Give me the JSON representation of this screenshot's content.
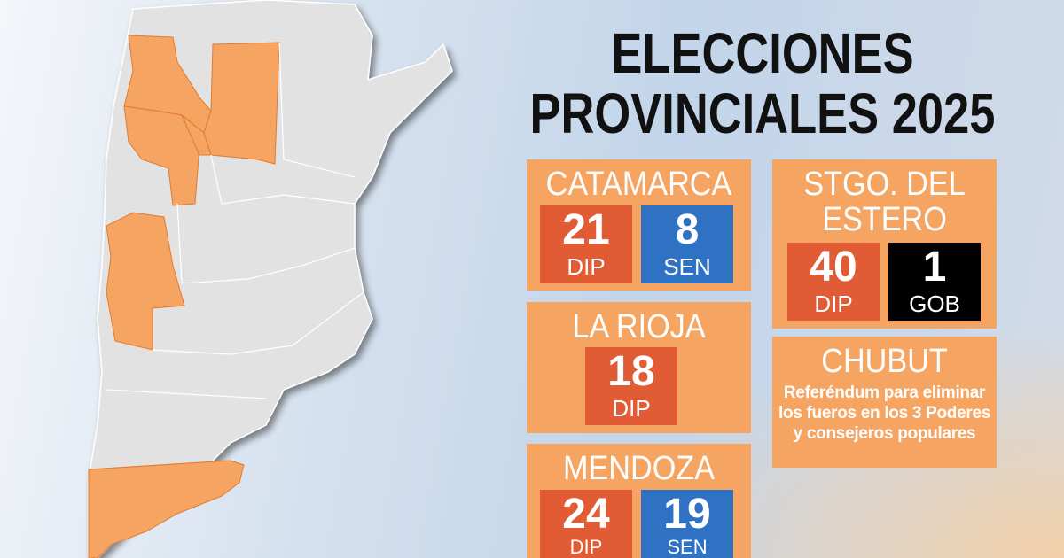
{
  "title": {
    "line1": "ELECCIONES",
    "line2": "PROVINCIALES 2025"
  },
  "colors": {
    "card": "#f5a461",
    "diputados": "#e15b34",
    "senadores": "#2f72c4",
    "gobernador": "#000000",
    "map_land": "#e2e2e2",
    "map_highlight": "#f5a461"
  },
  "provinces": [
    {
      "name": "CATAMARCA",
      "seats": [
        {
          "number": "21",
          "label": "DIP"
        },
        {
          "number": "8",
          "label": "SEN"
        }
      ]
    },
    {
      "name": "LA RIOJA",
      "seats": [
        {
          "number": "18",
          "label": "DIP"
        }
      ]
    },
    {
      "name": "MENDOZA",
      "seats": [
        {
          "number": "24",
          "label": "DIP"
        },
        {
          "number": "19",
          "label": "SEN"
        }
      ]
    },
    {
      "name_line1": "STGO. DEL",
      "name_line2": "ESTERO",
      "seats": [
        {
          "number": "40",
          "label": "DIP"
        },
        {
          "number": "1",
          "label": "GOB"
        }
      ]
    },
    {
      "name": "CHUBUT",
      "description": "Referéndum para eliminar los fueros en los 3 Poderes y consejeros populares"
    }
  ]
}
